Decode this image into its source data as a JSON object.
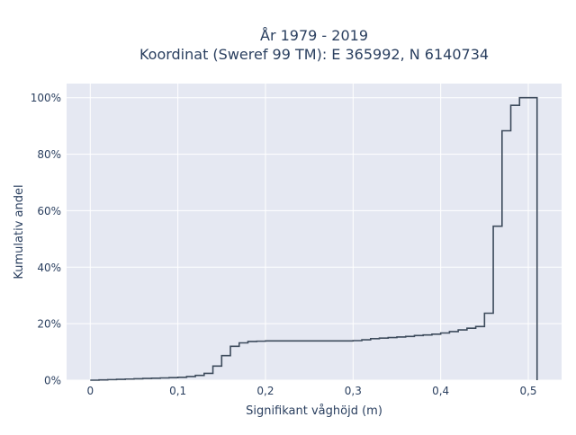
{
  "chart_data": {
    "type": "line",
    "title": "År 1979 - 2019",
    "subtitle": "Koordinat (Sweref 99 TM): E 365992, N 6140734",
    "xlabel": "Signifikant våghöjd (m)",
    "ylabel": "Kumulativ andel",
    "xlim": [
      -0.027,
      0.538
    ],
    "ylim": [
      0,
      1.05
    ],
    "xticks": [
      0,
      0.1,
      0.2,
      0.3,
      0.4,
      0.5
    ],
    "xtick_labels": [
      "0",
      "0,1",
      "0,2",
      "0,3",
      "0,4",
      "0,5"
    ],
    "yticks": [
      0,
      0.2,
      0.4,
      0.6,
      0.8,
      1.0
    ],
    "ytick_labels": [
      "0%",
      "20%",
      "40%",
      "60%",
      "80%",
      "100%"
    ],
    "grid": true,
    "legend": "none",
    "colors": {
      "line": "#3d4b5c",
      "plot_bg": "#e5e8f2",
      "grid": "#ffffff",
      "text": "#2a3f5f"
    },
    "series": [
      {
        "step": "post",
        "x": [
          0,
          0.01,
          0.02,
          0.03,
          0.04,
          0.05,
          0.06,
          0.07,
          0.08,
          0.09,
          0.1,
          0.11,
          0.12,
          0.13,
          0.14,
          0.15,
          0.16,
          0.17,
          0.18,
          0.19,
          0.2,
          0.3,
          0.31,
          0.32,
          0.33,
          0.34,
          0.35,
          0.36,
          0.37,
          0.38,
          0.39,
          0.4,
          0.41,
          0.42,
          0.43,
          0.44,
          0.45,
          0.46,
          0.47,
          0.48,
          0.49,
          0.5,
          0.51
        ],
        "y": [
          0.0,
          0.001,
          0.002,
          0.003,
          0.004,
          0.005,
          0.006,
          0.007,
          0.008,
          0.009,
          0.01,
          0.013,
          0.017,
          0.024,
          0.05,
          0.087,
          0.12,
          0.132,
          0.137,
          0.138,
          0.139,
          0.14,
          0.143,
          0.147,
          0.149,
          0.151,
          0.153,
          0.155,
          0.158,
          0.16,
          0.163,
          0.167,
          0.172,
          0.178,
          0.184,
          0.19,
          0.237,
          0.545,
          0.883,
          0.973,
          1.0,
          1.0,
          0.0
        ]
      }
    ]
  }
}
